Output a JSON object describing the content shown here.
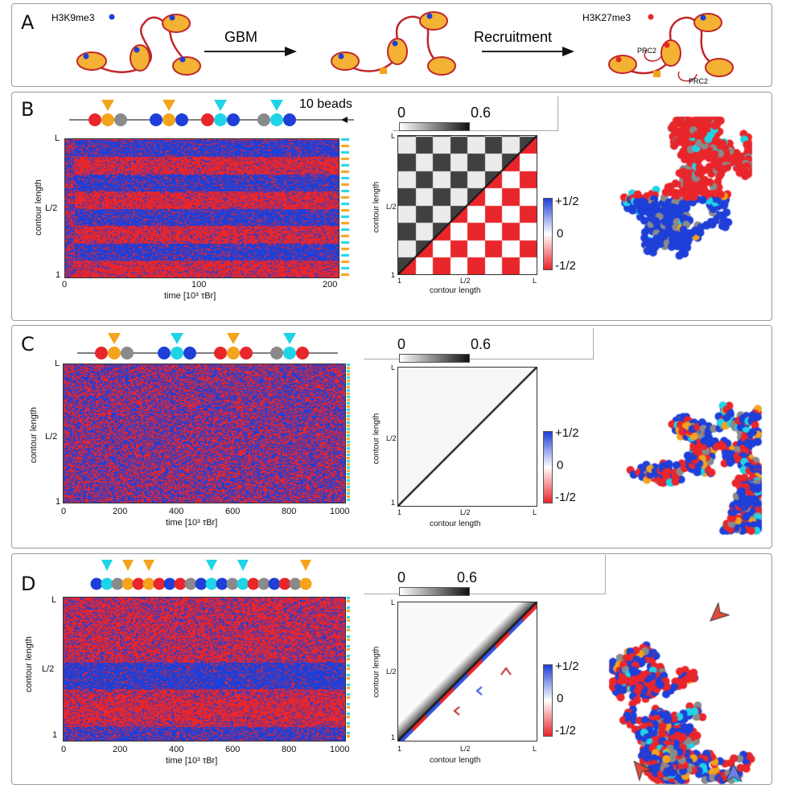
{
  "panel_a": {
    "label": "A",
    "mark_h3k9": "H3K9me3",
    "arrow_gbm": "GBM",
    "arrow_recruit": "Recruitment",
    "mark_h3k27": "H3K27me3",
    "prc_a": "PRC2",
    "prc_b": "PRC2"
  },
  "panel_b": {
    "label": "B",
    "beads_label": "10 beads",
    "kymo": {
      "ylabel": "contour length",
      "y_top": "L",
      "y_mid": "L/2",
      "y_bot": "1",
      "xlabel": "time [10³ τBr]",
      "xticks": [
        "0",
        "100",
        "200"
      ]
    },
    "cbar": {
      "min": "0",
      "max": "0.6"
    },
    "corr": {
      "top": "+1/2",
      "mid": "0",
      "bot": "-1/2"
    },
    "map": {
      "ylabel": "contour length",
      "xlabel": "contour length",
      "t1": "1",
      "tmid": "L/2",
      "tL": "L"
    }
  },
  "panel_c": {
    "label": "C",
    "kymo": {
      "ylabel": "contour length",
      "y_top": "L",
      "y_mid": "L/2",
      "y_bot": "1",
      "xlabel": "time [10³ τBr]",
      "xticks": [
        "0",
        "200",
        "400",
        "600",
        "800",
        "1000"
      ]
    },
    "cbar": {
      "min": "0",
      "max": "0.6"
    },
    "corr": {
      "top": "+1/2",
      "mid": "0",
      "bot": "-1/2"
    },
    "map": {
      "ylabel": "contour length",
      "xlabel": "contour length",
      "t1": "1",
      "tmid": "L/2",
      "tL": "L"
    }
  },
  "panel_d": {
    "label": "D",
    "kymo": {
      "ylabel": "contour length",
      "y_top": "L",
      "y_mid": "L/2",
      "y_bot": "1",
      "xlabel": "time [10³ τBr]",
      "xticks": [
        "0",
        "200",
        "400",
        "600",
        "800",
        "1000"
      ]
    },
    "cbar": {
      "min": "0",
      "max": "0.6"
    },
    "corr": {
      "top": "+1/2",
      "mid": "0",
      "bot": "-1/2"
    },
    "map": {
      "ylabel": "contour length",
      "xlabel": "contour length",
      "t1": "1",
      "tmid": "L/2",
      "tL": "L"
    }
  },
  "colors": {
    "red": "#e8262b",
    "blue": "#1e3fd8",
    "cyan": "#1fd4e6",
    "orange": "#f4a31c",
    "grey": "#8a8a8a"
  }
}
